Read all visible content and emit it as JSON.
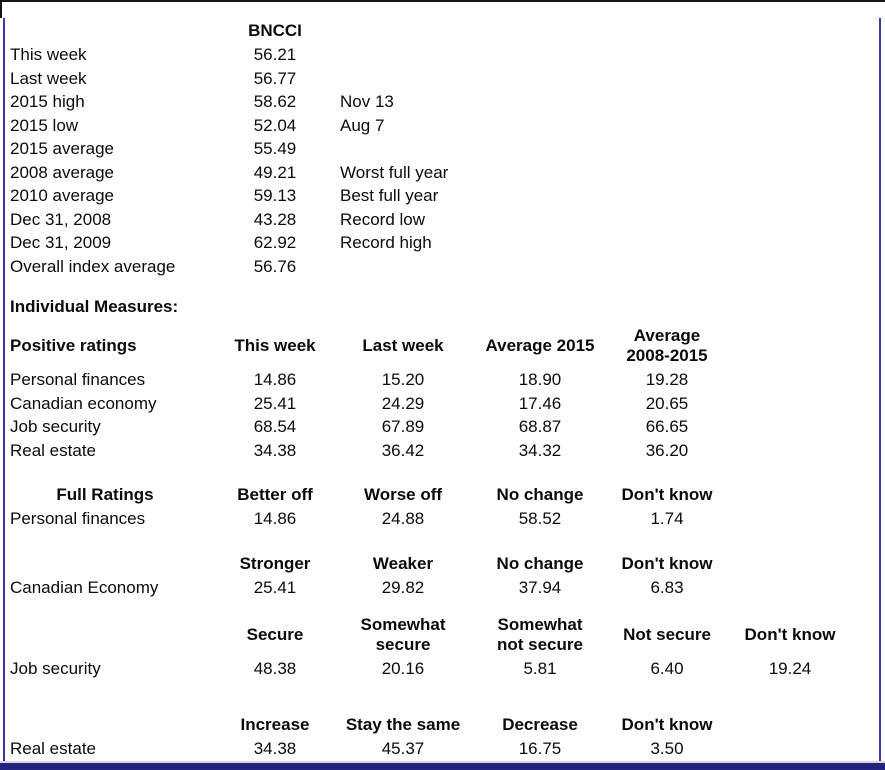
{
  "colors": {
    "text": "#0b0b0b",
    "border-blue": "#3a3aa8",
    "bar-navy": "#23237e",
    "strip-gray": "#d6d6d6",
    "top-line": "#141414"
  },
  "summary": {
    "index_name": "BNCCI",
    "rows": [
      {
        "label": "This week",
        "value": "56.21",
        "note": ""
      },
      {
        "label": "Last week",
        "value": "56.77",
        "note": ""
      },
      {
        "label": "2015 high",
        "value": "58.62",
        "note": "Nov 13"
      },
      {
        "label": "2015 low",
        "value": "52.04",
        "note": "Aug 7"
      },
      {
        "label": "2015 average",
        "value": "55.49",
        "note": ""
      },
      {
        "label": "2008 average",
        "value": "49.21",
        "note": "Worst full year"
      },
      {
        "label": "2010 average",
        "value": "59.13",
        "note": "Best full year"
      },
      {
        "label": "Dec 31, 2008",
        "value": "43.28",
        "note": "Record low"
      },
      {
        "label": "Dec 31, 2009",
        "value": "62.92",
        "note": "Record high"
      },
      {
        "label": "Overall index average",
        "value": "56.76",
        "note": ""
      }
    ]
  },
  "measures": {
    "title": "Individual Measures:",
    "positive": {
      "label": "Positive ratings",
      "columns": [
        "This week",
        "Last week",
        "Average 2015",
        "Average\n2008-2015"
      ],
      "rows": [
        {
          "label": "Personal finances",
          "values": [
            "14.86",
            "15.20",
            "18.90",
            "19.28"
          ]
        },
        {
          "label": "Canadian economy",
          "values": [
            "25.41",
            "24.29",
            "17.46",
            "20.65"
          ]
        },
        {
          "label": "Job security",
          "values": [
            "68.54",
            "67.89",
            "68.87",
            "66.65"
          ]
        },
        {
          "label": "Real estate",
          "values": [
            "34.38",
            "36.42",
            "34.32",
            "36.20"
          ]
        }
      ]
    },
    "full_ratings": {
      "label": "Full Ratings",
      "sections": [
        {
          "columns": [
            "Better off",
            "Worse off",
            "No change",
            "Don't know"
          ],
          "row": {
            "label": "Personal finances",
            "values": [
              "14.86",
              "24.88",
              "58.52",
              "1.74"
            ]
          }
        },
        {
          "columns": [
            "Stronger",
            "Weaker",
            "No change",
            "Don't know"
          ],
          "row": {
            "label": "Canadian Economy",
            "values": [
              "25.41",
              "29.82",
              "37.94",
              "6.83"
            ]
          }
        },
        {
          "columns": [
            "Secure",
            "Somewhat\nsecure",
            "Somewhat\nnot secure",
            "Not secure",
            "Don't know"
          ],
          "row": {
            "label": "Job security",
            "values": [
              "48.38",
              "20.16",
              "5.81",
              "6.40",
              "19.24"
            ]
          }
        },
        {
          "columns": [
            "Increase",
            "Stay the same",
            "Decrease",
            "Don't know"
          ],
          "row": {
            "label": "Real estate",
            "values": [
              "34.38",
              "45.37",
              "16.75",
              "3.50"
            ]
          }
        }
      ]
    }
  }
}
